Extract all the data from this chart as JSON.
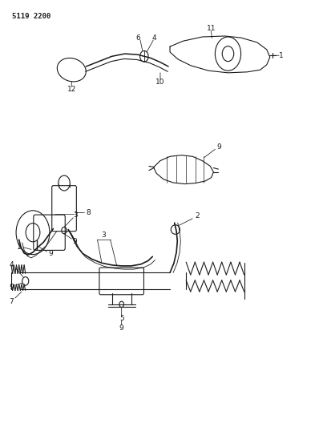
{
  "figure_id": "5119 2200",
  "bg_color": "#ffffff",
  "line_color": "#1a1a1a",
  "figsize": [
    4.08,
    5.33
  ],
  "dpi": 100
}
